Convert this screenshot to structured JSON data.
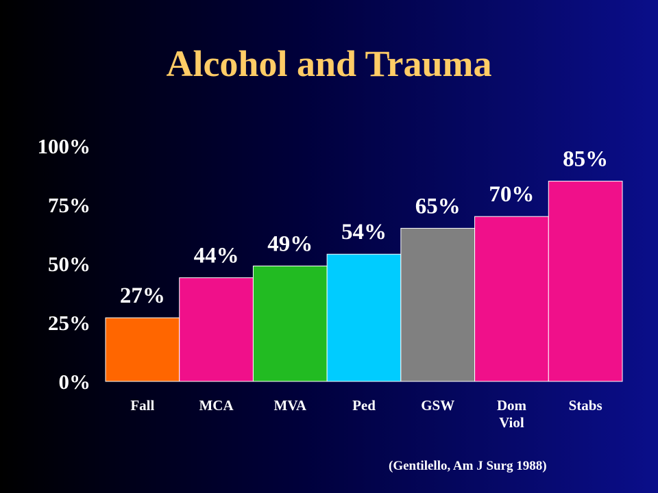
{
  "slide": {
    "title": "Alcohol and Trauma",
    "source": "(Gentilello, Am J Surg 1988)"
  },
  "chart_data": {
    "type": "bar",
    "title": "Alcohol and Trauma",
    "categories": [
      [
        "Fall"
      ],
      [
        "MCA"
      ],
      [
        "MVA"
      ],
      [
        "Ped"
      ],
      [
        "GSW"
      ],
      [
        "Dom",
        "Viol"
      ],
      [
        "Stabs"
      ]
    ],
    "values": [
      27,
      44,
      49,
      54,
      65,
      70,
      85
    ],
    "data_labels": [
      "27%",
      "44%",
      "49%",
      "54%",
      "65%",
      "70%",
      "85%"
    ],
    "colors": [
      "#ff6600",
      "#f0108a",
      "#22bb22",
      "#00ccff",
      "#808080",
      "#f0108a",
      "#f0108a"
    ],
    "ylim": [
      0,
      100
    ],
    "yticks": [
      0,
      25,
      50,
      75,
      100
    ],
    "ytick_labels": [
      "0%",
      "25%",
      "50%",
      "75%",
      "100%"
    ],
    "xlabel": "",
    "ylabel": "",
    "grid": false,
    "legend": "none"
  }
}
